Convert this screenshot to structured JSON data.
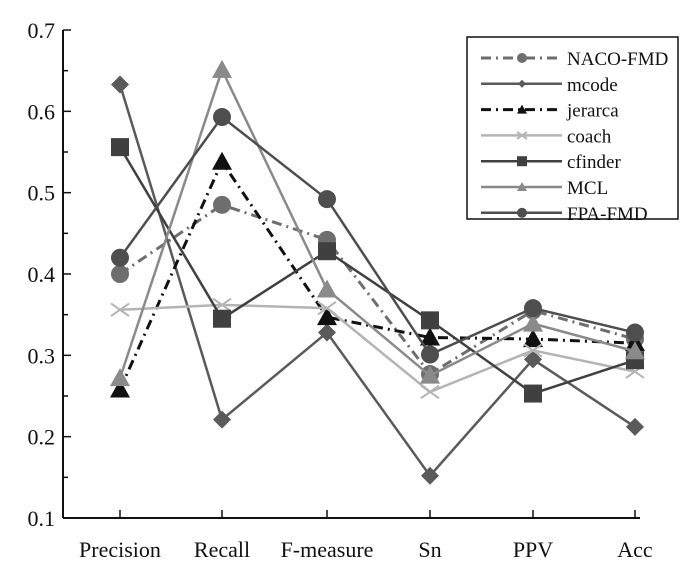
{
  "chart_data": {
    "type": "line",
    "title": "",
    "xlabel": "",
    "ylabel": "",
    "categories": [
      "Precision",
      "Recall",
      "F-measure",
      "Sn",
      "PPV",
      "Acc"
    ],
    "ylim": [
      0.1,
      0.7
    ],
    "yticks": [
      "0.1",
      "0.2",
      "0.3",
      "0.4",
      "0.5",
      "0.6",
      "0.7"
    ],
    "grid": false,
    "legend_position": "top-right",
    "series": [
      {
        "name": "NACO-FMD",
        "values": [
          0.4,
          0.485,
          0.442,
          0.277,
          0.355,
          0.32
        ],
        "color": "#6e6e6e",
        "marker": "circle",
        "dash": "dashdot"
      },
      {
        "name": "mcode",
        "values": [
          0.633,
          0.221,
          0.328,
          0.152,
          0.295,
          0.212
        ],
        "color": "#5a5a5a",
        "marker": "diamond",
        "dash": "solid"
      },
      {
        "name": "jerarca",
        "values": [
          0.258,
          0.538,
          0.347,
          0.322,
          0.32,
          0.315
        ],
        "color": "#111111",
        "marker": "triangle",
        "dash": "dashdot"
      },
      {
        "name": "coach",
        "values": [
          0.356,
          0.362,
          0.358,
          0.255,
          0.306,
          0.28
        ],
        "color": "#b4b4b4",
        "marker": "x",
        "dash": "solid"
      },
      {
        "name": "cfinder",
        "values": [
          0.556,
          0.345,
          0.428,
          0.343,
          0.253,
          0.294
        ],
        "color": "#404040",
        "marker": "square",
        "dash": "solid"
      },
      {
        "name": "MCL",
        "values": [
          0.272,
          0.651,
          0.381,
          0.275,
          0.339,
          0.305
        ],
        "color": "#8a8a8a",
        "marker": "triangle",
        "dash": "solid"
      },
      {
        "name": "FPA-FMD",
        "values": [
          0.42,
          0.593,
          0.492,
          0.301,
          0.358,
          0.328
        ],
        "color": "#4e4e4e",
        "marker": "circle",
        "dash": "solid"
      }
    ]
  }
}
